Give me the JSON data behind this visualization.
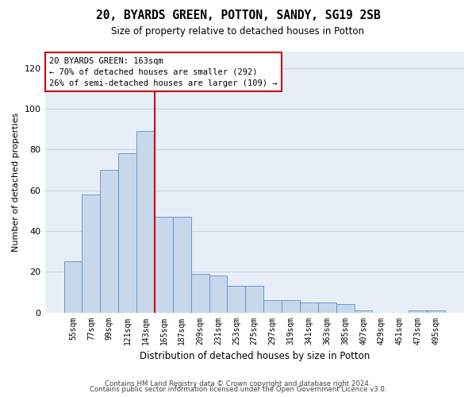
{
  "title": "20, BYARDS GREEN, POTTON, SANDY, SG19 2SB",
  "subtitle": "Size of property relative to detached houses in Potton",
  "xlabel": "Distribution of detached houses by size in Potton",
  "ylabel": "Number of detached properties",
  "bar_labels": [
    "55sqm",
    "77sqm",
    "99sqm",
    "121sqm",
    "143sqm",
    "165sqm",
    "187sqm",
    "209sqm",
    "231sqm",
    "253sqm",
    "275sqm",
    "297sqm",
    "319sqm",
    "341sqm",
    "363sqm",
    "385sqm",
    "407sqm",
    "429sqm",
    "451sqm",
    "473sqm",
    "495sqm"
  ],
  "bar_heights": [
    25,
    58,
    70,
    78,
    89,
    47,
    47,
    19,
    18,
    13,
    13,
    6,
    6,
    5,
    5,
    4,
    1,
    0,
    0,
    1,
    1
  ],
  "bar_color": "#c8d8ec",
  "bar_edge_color": "#5b8fc9",
  "vline_color": "#cc0000",
  "annotation_text": "20 BYARDS GREEN: 163sqm\n← 70% of detached houses are smaller (292)\n26% of semi-detached houses are larger (109) →",
  "annotation_box_color": "#ffffff",
  "annotation_box_edge_color": "#cc0000",
  "ylim": [
    0,
    128
  ],
  "yticks": [
    0,
    20,
    40,
    60,
    80,
    100,
    120
  ],
  "grid_color": "#c8d4e8",
  "background_color": "#e8eef8",
  "footer_line1": "Contains HM Land Registry data © Crown copyright and database right 2024.",
  "footer_line2": "Contains public sector information licensed under the Open Government Licence v3.0."
}
